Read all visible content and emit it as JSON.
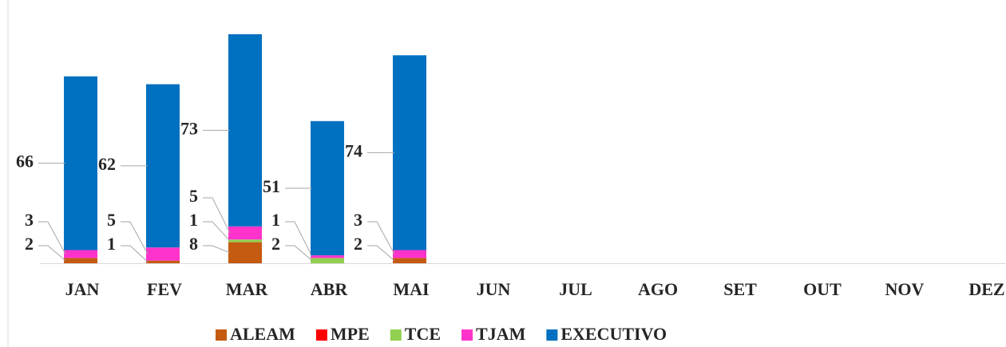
{
  "chart_data": {
    "type": "stacked_bar",
    "categories": [
      "JAN",
      "FEV",
      "MAR",
      "ABR",
      "MAI",
      "JUN",
      "JUL",
      "AGO",
      "SET",
      "OUT",
      "NOV",
      "DEZ"
    ],
    "series": [
      {
        "name": "ALEAM",
        "color": "#c55a11",
        "values": [
          2,
          1,
          8,
          null,
          2,
          null,
          null,
          null,
          null,
          null,
          null,
          null
        ]
      },
      {
        "name": "MPE",
        "color": "#ff0000",
        "values": [
          null,
          null,
          null,
          null,
          null,
          null,
          null,
          null,
          null,
          null,
          null,
          null
        ]
      },
      {
        "name": "TCE",
        "color": "#92d050",
        "values": [
          null,
          null,
          1,
          2,
          null,
          null,
          null,
          null,
          null,
          null,
          null,
          null
        ]
      },
      {
        "name": "TJAM",
        "color": "#ff33cc",
        "values": [
          3,
          5,
          5,
          1,
          3,
          null,
          null,
          null,
          null,
          null,
          null,
          null
        ]
      },
      {
        "name": "EXECUTIVO",
        "color": "#0070c0",
        "values": [
          66,
          62,
          73,
          51,
          74,
          null,
          null,
          null,
          null,
          null,
          null,
          null
        ]
      }
    ],
    "legend": "bottom"
  }
}
